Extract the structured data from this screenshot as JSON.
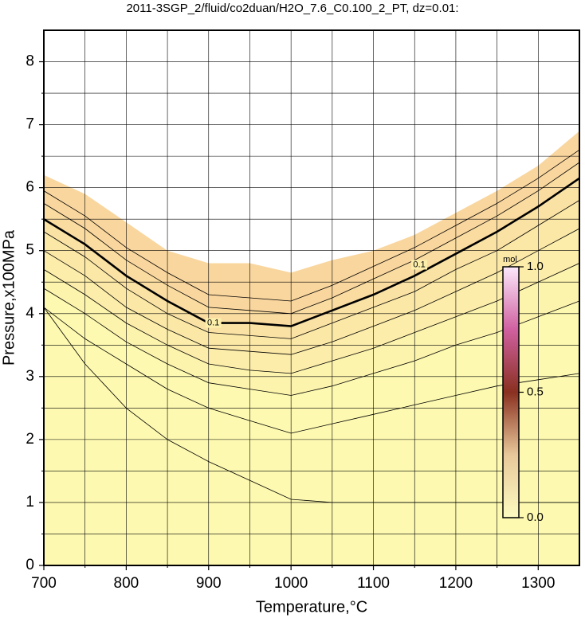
{
  "chart_data": {
    "type": "contour",
    "title": "2011-3SGP_2/fluid/co2duan/H2O_7.6_C0.100_2_PT, dz=0.01:",
    "x_label": "Temperature,°C",
    "y_label": "Pressure,x100MPa",
    "xlim": [
      700,
      1350
    ],
    "ylim": [
      0,
      8.5
    ],
    "xticks": [
      700,
      800,
      900,
      1000,
      1100,
      1200,
      1300
    ],
    "xminorticks": [
      750,
      850,
      950,
      1050,
      1150,
      1250
    ],
    "yticks": [
      0,
      1,
      2,
      3,
      4,
      5,
      6,
      7,
      8
    ],
    "yminorticks": [
      0.5,
      1.5,
      2.5,
      3.5,
      4.5,
      5.5,
      6.5,
      7.5
    ],
    "grid": true,
    "x": [
      700,
      750,
      800,
      850,
      900,
      950,
      1000,
      1050,
      1100,
      1150,
      1200,
      1250,
      1300,
      1350
    ],
    "boundary": [
      6.2,
      5.9,
      5.45,
      5.0,
      4.8,
      4.8,
      4.65,
      4.85,
      5.0,
      5.25,
      5.6,
      5.95,
      6.35,
      6.9
    ],
    "contours": [
      {
        "level": 0.12,
        "values": [
          5.95,
          5.55,
          5.05,
          4.65,
          4.3,
          4.25,
          4.2,
          4.45,
          4.75,
          5.05,
          5.4,
          5.75,
          6.15,
          6.6
        ]
      },
      {
        "level": 0.11,
        "values": [
          5.75,
          5.35,
          4.85,
          4.45,
          4.1,
          4.05,
          4.0,
          4.25,
          4.55,
          4.85,
          5.2,
          5.55,
          5.95,
          6.4
        ]
      },
      {
        "level": 0.1,
        "label": "0.1",
        "bold": true,
        "values": [
          5.5,
          5.1,
          4.6,
          4.2,
          3.85,
          3.85,
          3.8,
          4.05,
          4.3,
          4.6,
          4.95,
          5.3,
          5.7,
          6.15
        ]
      },
      {
        "level": 0.09,
        "values": [
          5.3,
          4.9,
          4.4,
          4.0,
          3.7,
          3.65,
          3.6,
          3.85,
          4.1,
          4.35,
          4.7,
          5.0,
          5.4,
          5.8
        ]
      },
      {
        "level": 0.08,
        "values": [
          5.0,
          4.6,
          4.1,
          3.75,
          3.45,
          3.4,
          3.35,
          3.55,
          3.8,
          4.05,
          4.35,
          4.65,
          5.0,
          5.35
        ]
      },
      {
        "level": 0.07,
        "values": [
          4.7,
          4.3,
          3.85,
          3.5,
          3.2,
          3.1,
          3.05,
          3.25,
          3.45,
          3.7,
          3.95,
          4.2,
          4.5,
          4.8
        ]
      },
      {
        "level": 0.06,
        "values": [
          4.4,
          4.0,
          3.55,
          3.2,
          2.9,
          2.8,
          2.7,
          2.85,
          3.05,
          3.25,
          3.5,
          3.7,
          3.95,
          4.2
        ]
      },
      {
        "level": 0.04,
        "values": [
          4.1,
          3.6,
          3.2,
          2.8,
          2.5,
          2.3,
          2.1,
          2.25,
          2.4,
          2.55,
          2.7,
          2.85,
          2.95,
          3.05
        ]
      },
      {
        "level": 0.01,
        "values": [
          4.1,
          3.2,
          2.5,
          2.0,
          1.65,
          1.35,
          1.05,
          1.0,
          1.0,
          1.0,
          1.0,
          1.0,
          1.0,
          1.0
        ]
      }
    ],
    "colorbar": {
      "label": "mol",
      "lim": [
        0,
        1
      ],
      "ticks": [
        {
          "value": 0,
          "label": "0.0"
        },
        {
          "value": 0.5,
          "label": "0.5"
        },
        {
          "value": 1,
          "label": "1.0"
        }
      ]
    }
  }
}
